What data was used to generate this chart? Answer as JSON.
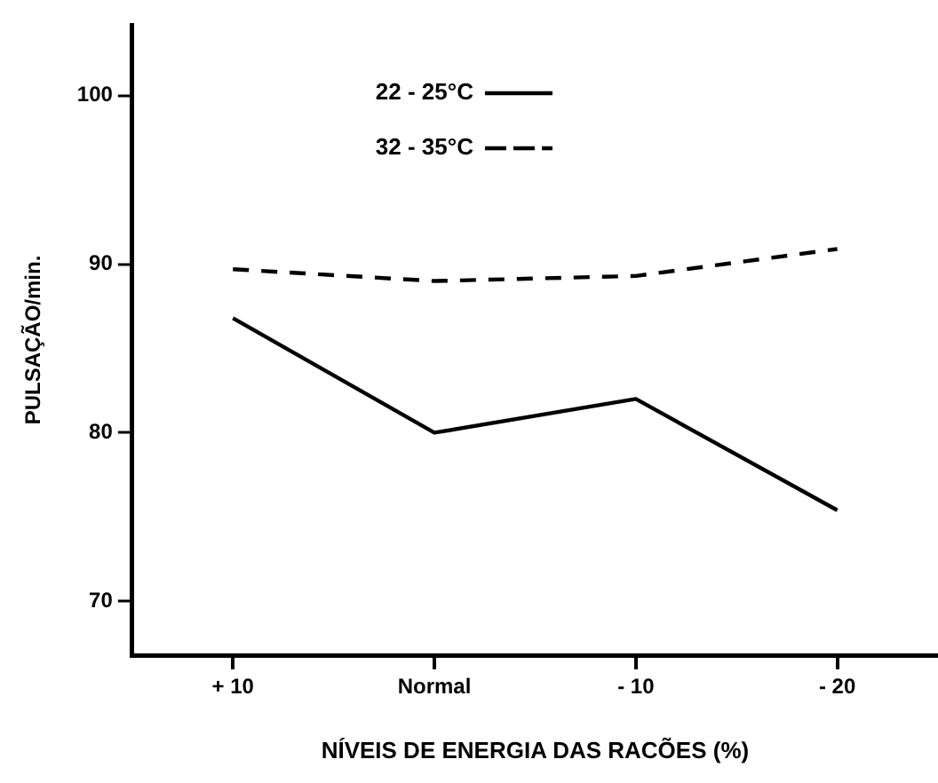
{
  "chart_data": {
    "type": "line",
    "xlabel": "NÍVEIS DE ENERGIA DAS RACÕES (%)",
    "ylabel": "PULSAÇÃO/min.",
    "categories": [
      "+ 10",
      "Normal",
      "- 10",
      "- 20"
    ],
    "series": [
      {
        "name": "22 - 25°C",
        "color": "#000000",
        "line_style": "solid",
        "values": [
          86.8,
          80,
          82,
          75.4
        ]
      },
      {
        "name": "32 - 35°C",
        "color": "#000000",
        "line_style": "dashed",
        "values": [
          89.7,
          89,
          89.3,
          90.9
        ]
      }
    ],
    "ylim": [
      66.8,
      104.2
    ],
    "yticks": [
      70,
      80,
      90,
      100
    ],
    "grid": false,
    "legend": "top",
    "marker": "none"
  }
}
